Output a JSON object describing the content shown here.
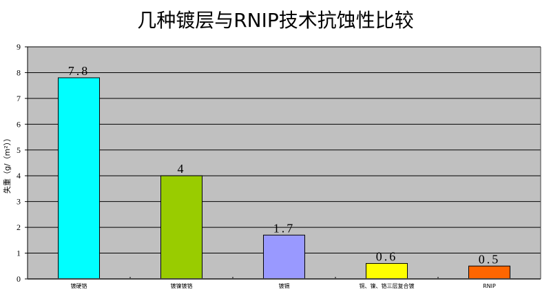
{
  "chart_data": {
    "type": "bar",
    "title": "几种镀层与RNIP技术抗蚀性比较",
    "ylabel": "失重（g/（m²））",
    "xlabel": "",
    "categories": [
      "镀硬铬",
      "镀镍镀铬",
      "镀镉",
      "铜、镍、铬三层复合镀",
      "RNIP"
    ],
    "values": [
      7.8,
      4,
      1.7,
      0.6,
      0.5
    ],
    "data_labels": [
      "7.8",
      "4",
      "1.7",
      "0.6",
      "0.5"
    ],
    "colors": [
      "#00FFFF",
      "#99CC00",
      "#9999FF",
      "#FFFF00",
      "#FF6600"
    ],
    "ylim": [
      0,
      9
    ],
    "yticks": [
      0,
      1,
      2,
      3,
      4,
      5,
      6,
      7,
      8,
      9
    ],
    "grid": true,
    "plot_background": "#C0C0C0"
  }
}
